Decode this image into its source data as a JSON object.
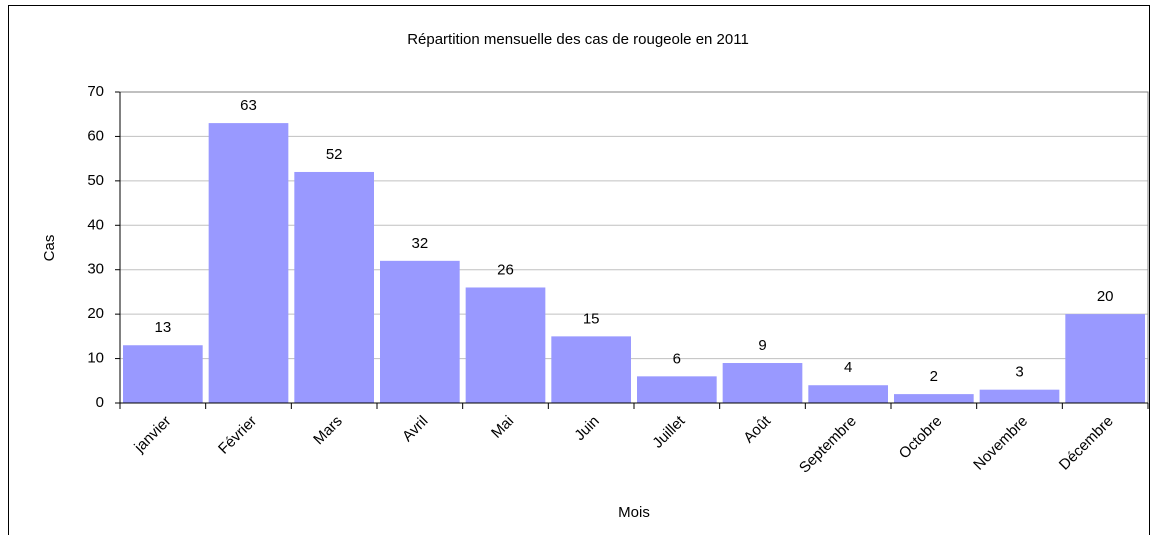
{
  "chart_data": {
    "type": "bar",
    "title": "Répartition mensuelle des cas de rougeole en 2011",
    "x_label": "Mois",
    "y_label": "Cas",
    "categories": [
      "janvier",
      "Février",
      "Mars",
      "Avril",
      "Mai",
      "Juin",
      "Juillet",
      "Août",
      "Septembre",
      "Octobre",
      "Novembre",
      "Décembre"
    ],
    "values": [
      13,
      63,
      52,
      32,
      26,
      15,
      6,
      9,
      4,
      2,
      3,
      20
    ],
    "color": "#9999ff",
    "ylim": [
      0,
      70
    ],
    "yticks": [
      0,
      10,
      20,
      30,
      40,
      50,
      60,
      70
    ],
    "grid": true
  }
}
